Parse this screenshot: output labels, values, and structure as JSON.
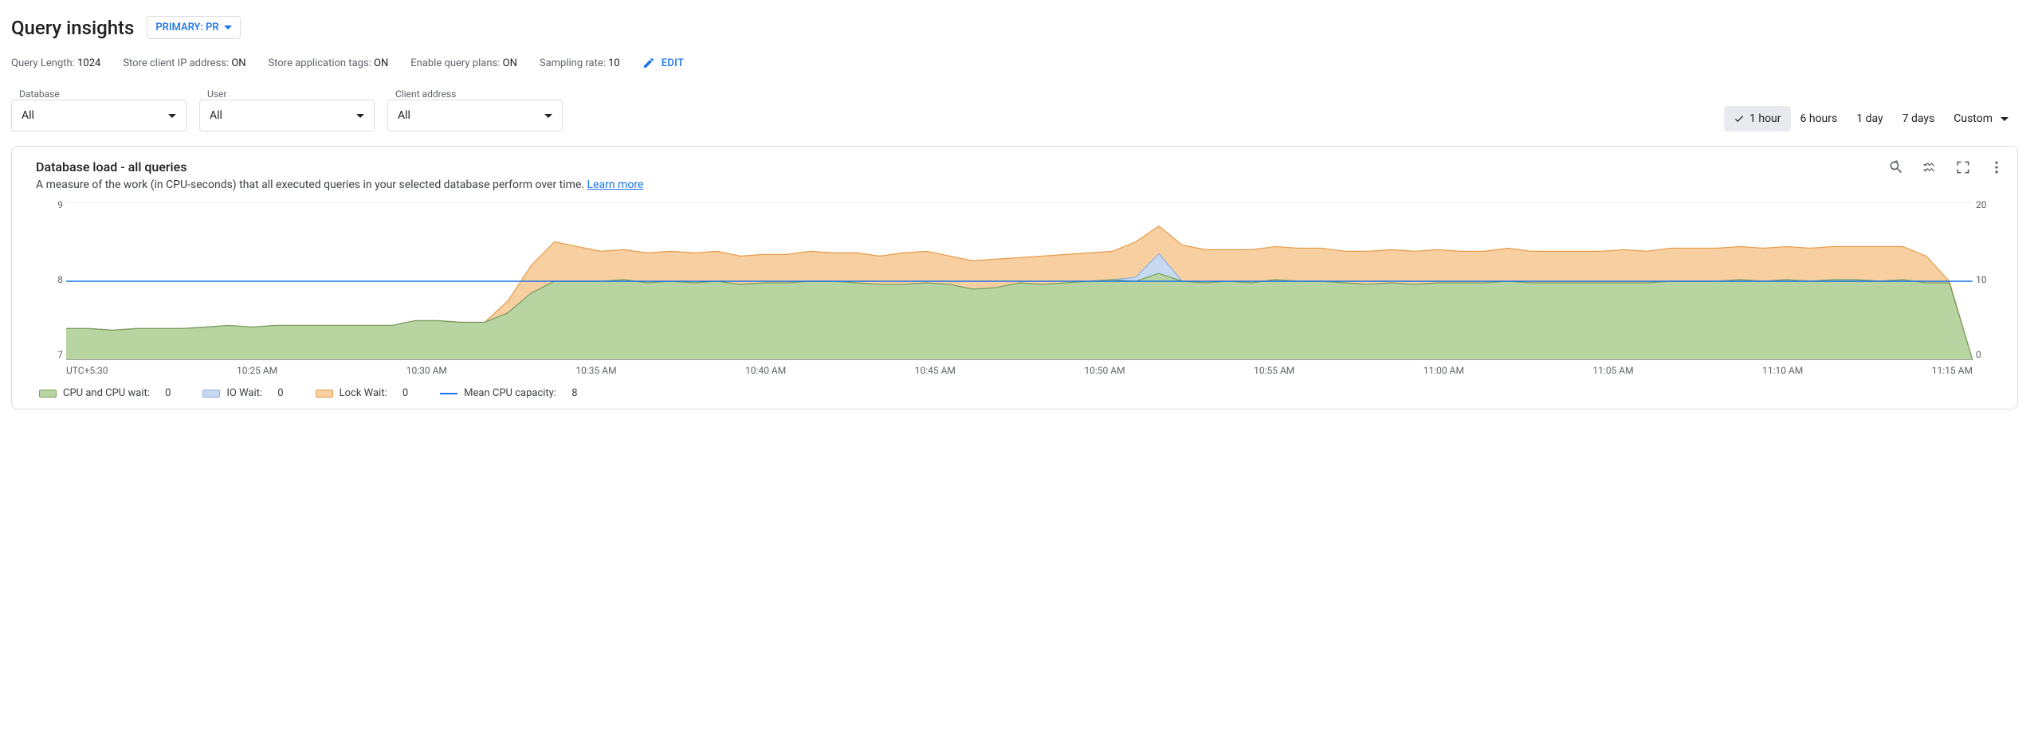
{
  "header": {
    "title": "Query insights",
    "instance_chip": "PRIMARY: PR"
  },
  "settings": {
    "query_length_label": "Query Length:",
    "query_length": "1024",
    "store_ip_label": "Store client IP address:",
    "store_ip": "ON",
    "store_tags_label": "Store application tags:",
    "store_tags": "ON",
    "query_plans_label": "Enable query plans:",
    "query_plans": "ON",
    "sampling_label": "Sampling rate:",
    "sampling": "10",
    "edit_label": "EDIT"
  },
  "filters": {
    "database": {
      "label": "Database",
      "value": "All"
    },
    "user": {
      "label": "User",
      "value": "All"
    },
    "client": {
      "label": "Client address",
      "value": "All"
    }
  },
  "time_range": {
    "options": [
      "1 hour",
      "6 hours",
      "1 day",
      "7 days"
    ],
    "custom_label": "Custom",
    "active": "1 hour"
  },
  "card": {
    "title": "Database load - all queries",
    "desc": "A measure of the work (in CPU-seconds) that all executed queries in your selected database perform over time. ",
    "learn_more": "Learn more"
  },
  "chart": {
    "type": "stacked-area",
    "background_color": "#ffffff",
    "grid_color": "#e0e0e0",
    "left_axis": {
      "min": 7,
      "max": 9,
      "ticks": [
        "9",
        "8",
        "7"
      ]
    },
    "right_axis": {
      "min": 0,
      "max": 20,
      "ticks": [
        "20",
        "10",
        "0"
      ]
    },
    "x_ticks": [
      "UTC+5:30",
      "10:25 AM",
      "10:30 AM",
      "10:35 AM",
      "10:40 AM",
      "10:45 AM",
      "10:50 AM",
      "10:55 AM",
      "11:00 AM",
      "11:05 AM",
      "11:10 AM",
      "11:15 AM"
    ],
    "mean_cpu_capacity": 8,
    "series": {
      "cpu": {
        "label": "CPU and CPU wait:",
        "value": "0",
        "fill": "#b8d4a1",
        "stroke": "#7ba05b",
        "points": [
          7.4,
          7.4,
          7.38,
          7.4,
          7.4,
          7.4,
          7.42,
          7.44,
          7.42,
          7.44,
          7.44,
          7.44,
          7.44,
          7.44,
          7.44,
          7.5,
          7.5,
          7.48,
          7.48,
          7.6,
          7.85,
          8.0,
          8.0,
          8.0,
          8.02,
          7.98,
          8.0,
          7.98,
          8.0,
          7.96,
          7.98,
          7.98,
          8.0,
          8.0,
          7.98,
          7.96,
          7.96,
          7.98,
          7.96,
          7.9,
          7.92,
          7.98,
          7.96,
          7.98,
          8.0,
          8.02,
          8.0,
          8.1,
          8.0,
          7.98,
          8.0,
          7.98,
          8.02,
          8.0,
          8.0,
          7.98,
          7.96,
          7.98,
          7.96,
          7.98,
          7.98,
          7.98,
          8.0,
          7.98,
          7.98,
          7.98,
          7.98,
          7.98,
          7.98,
          8.0,
          8.0,
          8.0,
          8.02,
          8.0,
          8.02,
          8.0,
          8.02,
          8.02,
          8.0,
          8.02,
          7.98,
          7.98,
          7.0
        ]
      },
      "io": {
        "label": "IO Wait:",
        "value": "0",
        "fill": "#c6d9f0",
        "stroke": "#8fb0e0",
        "points": [
          7.4,
          7.4,
          7.38,
          7.4,
          7.4,
          7.4,
          7.42,
          7.44,
          7.42,
          7.44,
          7.44,
          7.44,
          7.44,
          7.44,
          7.44,
          7.5,
          7.5,
          7.48,
          7.48,
          7.6,
          7.85,
          8.0,
          8.0,
          8.0,
          8.02,
          7.98,
          8.0,
          7.98,
          8.0,
          7.96,
          7.98,
          7.98,
          8.0,
          8.0,
          7.98,
          7.96,
          7.96,
          7.98,
          7.96,
          7.9,
          7.92,
          7.98,
          7.96,
          7.98,
          8.0,
          8.02,
          8.05,
          8.35,
          8.0,
          7.98,
          8.0,
          7.98,
          8.02,
          8.0,
          8.0,
          7.98,
          7.96,
          7.98,
          7.96,
          7.98,
          7.98,
          7.98,
          8.0,
          7.98,
          7.98,
          7.98,
          7.98,
          7.98,
          7.98,
          8.0,
          8.0,
          8.0,
          8.02,
          8.0,
          8.02,
          8.0,
          8.02,
          8.02,
          8.0,
          8.02,
          7.98,
          7.98,
          7.0
        ]
      },
      "lock": {
        "label": "Lock Wait:",
        "value": "0",
        "fill": "#f8cfa0",
        "stroke": "#e69b4a",
        "points": [
          7.4,
          7.4,
          7.38,
          7.4,
          7.4,
          7.4,
          7.42,
          7.44,
          7.42,
          7.44,
          7.44,
          7.44,
          7.44,
          7.44,
          7.44,
          7.5,
          7.5,
          7.48,
          7.48,
          7.75,
          8.2,
          8.5,
          8.44,
          8.38,
          8.4,
          8.36,
          8.38,
          8.36,
          8.38,
          8.32,
          8.34,
          8.34,
          8.38,
          8.36,
          8.36,
          8.32,
          8.36,
          8.38,
          8.32,
          8.26,
          8.28,
          8.3,
          8.32,
          8.34,
          8.36,
          8.38,
          8.5,
          8.7,
          8.46,
          8.4,
          8.4,
          8.4,
          8.44,
          8.42,
          8.42,
          8.38,
          8.38,
          8.4,
          8.38,
          8.4,
          8.38,
          8.38,
          8.42,
          8.38,
          8.38,
          8.38,
          8.38,
          8.4,
          8.38,
          8.42,
          8.42,
          8.42,
          8.44,
          8.42,
          8.44,
          8.42,
          8.44,
          8.44,
          8.44,
          8.44,
          8.32,
          8.0,
          7.0
        ]
      },
      "mean": {
        "label": "Mean CPU capacity:",
        "value": "8",
        "stroke": "#1a73e8"
      }
    }
  }
}
